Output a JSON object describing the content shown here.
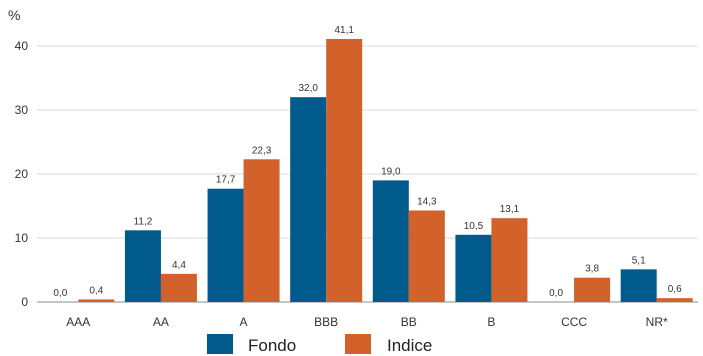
{
  "chart_data": {
    "type": "bar",
    "unit_label": "%",
    "categories": [
      "AAA",
      "AA",
      "A",
      "BBB",
      "BB",
      "B",
      "CCC",
      "NR*"
    ],
    "series": [
      {
        "name": "Fondo",
        "color": "#005a8c",
        "values": [
          0.0,
          11.2,
          17.7,
          32.0,
          19.0,
          10.5,
          0.0,
          5.1
        ],
        "labels": [
          "0,0",
          "11,2",
          "17,7",
          "32,0",
          "19,0",
          "10,5",
          "0,0",
          "5,1"
        ]
      },
      {
        "name": "Indice",
        "color": "#d2622a",
        "values": [
          0.4,
          4.4,
          22.3,
          41.1,
          14.3,
          13.1,
          3.8,
          0.6
        ],
        "labels": [
          "0,4",
          "4,4",
          "22,3",
          "41,1",
          "14,3",
          "13,1",
          "3,8",
          "0,6"
        ]
      }
    ],
    "ylim": [
      0,
      43
    ],
    "yticks": [
      0,
      10,
      20,
      30,
      40
    ],
    "grid": true,
    "legend_position": "bottom-center"
  }
}
